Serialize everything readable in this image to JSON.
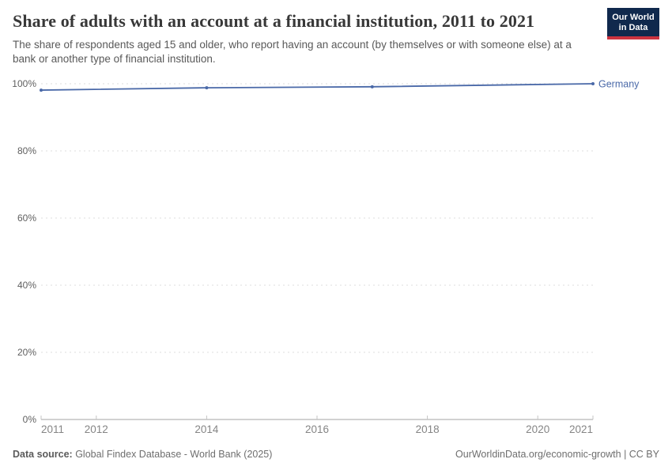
{
  "header": {
    "title": "Share of adults with an account at a financial institution, 2011 to 2021",
    "subtitle": "The share of respondents aged 15 and older, who report having an account (by themselves or with someone else) at a bank or another type of financial institution.",
    "logo": {
      "line1": "Our World",
      "line2": "in Data",
      "bg_color": "#10294d",
      "accent_color": "#cc3440"
    }
  },
  "chart_data": {
    "type": "line",
    "title": "Share of adults with an account at a financial institution, 2011 to 2021",
    "xlabel": "",
    "ylabel": "",
    "xlim": [
      2011,
      2021
    ],
    "ylim": [
      0,
      100
    ],
    "x_ticks": [
      2011,
      2012,
      2014,
      2016,
      2018,
      2020,
      2021
    ],
    "y_ticks": [
      0,
      20,
      40,
      60,
      80,
      100
    ],
    "y_tick_suffix": "%",
    "grid": "horizontal-dashed",
    "legend_position": "end-of-line-label",
    "series": [
      {
        "name": "Germany",
        "color": "#4a69a8",
        "points": [
          [
            2011,
            98.1
          ],
          [
            2014,
            98.8
          ],
          [
            2017,
            99.1
          ],
          [
            2021,
            100
          ]
        ]
      }
    ]
  },
  "footer": {
    "data_source_label": "Data source:",
    "data_source_value": " Global Findex Database - World Bank (2025)",
    "attribution": "OurWorldinData.org/economic-growth | CC BY"
  },
  "colors": {
    "grid": "#dcdcdc",
    "axis": "#a3a3a3",
    "tick": "#c4c4c4",
    "x_label": "#858585",
    "y_label": "#5f5f5f",
    "line_accent": "#4a69a8"
  }
}
